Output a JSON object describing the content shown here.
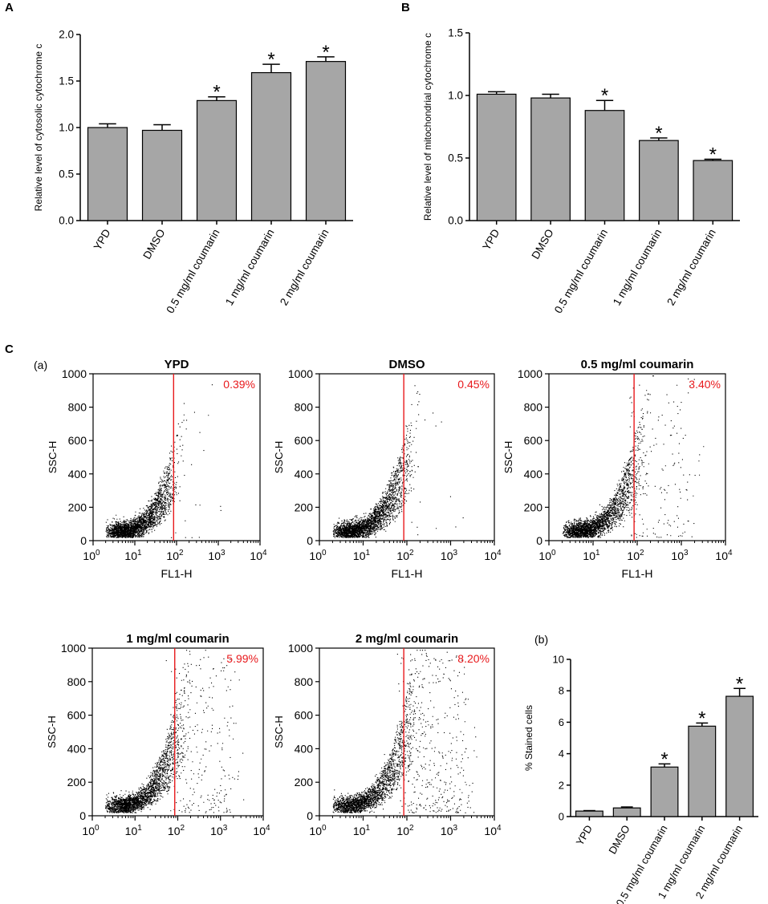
{
  "panel_labels": {
    "A": "A",
    "B": "B",
    "C": "C"
  },
  "sub_labels": {
    "a": "(a)",
    "b": "(b)"
  },
  "colors": {
    "bar": "#a6a6a6",
    "gate": "#e8191c",
    "axis": "#000000",
    "dots": "#000000"
  },
  "chart_data": [
    {
      "id": "A",
      "type": "bar",
      "title": "",
      "ylabel": "Relative level of cytosolic cytochrome c",
      "ylim": [
        0,
        2.0
      ],
      "yticks": [
        "0.0",
        "0.5",
        "1.0",
        "1.5",
        "2.0"
      ],
      "categories": [
        "YPD",
        "DMSO",
        "0.5 mg/ml coumarin",
        "1 mg/ml coumarin",
        "2 mg/ml coumarin"
      ],
      "values": [
        1.0,
        0.97,
        1.29,
        1.59,
        1.71
      ],
      "errors": [
        0.04,
        0.06,
        0.04,
        0.09,
        0.05
      ],
      "significant": [
        false,
        false,
        true,
        true,
        true
      ],
      "sig_symbol": "*"
    },
    {
      "id": "B",
      "type": "bar",
      "title": "",
      "ylabel": "Relative level of mitochondrial cytochrome c",
      "ylim": [
        0,
        1.5
      ],
      "yticks": [
        "0.0",
        "0.5",
        "1.0",
        "1.5"
      ],
      "categories": [
        "YPD",
        "DMSO",
        "0.5 mg/ml coumarin",
        "1 mg/ml coumarin",
        "2 mg/ml coumarin"
      ],
      "values": [
        1.01,
        0.98,
        0.88,
        0.64,
        0.48
      ],
      "errors": [
        0.02,
        0.03,
        0.08,
        0.02,
        0.01
      ],
      "significant": [
        false,
        false,
        true,
        true,
        true
      ],
      "sig_symbol": "*"
    },
    {
      "id": "C-YPD",
      "type": "scatter",
      "title": "YPD",
      "xlabel": "FL1-H",
      "ylabel": "SSC-H",
      "xscale": "log",
      "xlim": [
        1,
        10000
      ],
      "ylim": [
        0,
        1000
      ],
      "xticks": [
        "10",
        "10",
        "10",
        "10",
        "10"
      ],
      "xtick_exponents": [
        "0",
        "1",
        "2",
        "3",
        "4"
      ],
      "yticks": [
        "0",
        "200",
        "400",
        "600",
        "800",
        "1000"
      ],
      "gate_x": 85,
      "percent_label": "0.39%",
      "population": {
        "main_x_log": 1.0,
        "main_y": 110,
        "spread": 0.75,
        "outlier_fraction": 0.004
      }
    },
    {
      "id": "C-DMSO",
      "type": "scatter",
      "title": "DMSO",
      "xlabel": "FL1-H",
      "ylabel": "SSC-H",
      "xscale": "log",
      "xlim": [
        1,
        10000
      ],
      "ylim": [
        0,
        1000
      ],
      "xticks": [
        "10",
        "10",
        "10",
        "10",
        "10"
      ],
      "xtick_exponents": [
        "0",
        "1",
        "2",
        "3",
        "4"
      ],
      "yticks": [
        "0",
        "200",
        "400",
        "600",
        "800",
        "1000"
      ],
      "gate_x": 85,
      "percent_label": "0.45%",
      "population": {
        "main_x_log": 1.15,
        "main_y": 120,
        "spread": 0.85,
        "outlier_fraction": 0.005
      }
    },
    {
      "id": "C-0.5",
      "type": "scatter",
      "title": "0.5 mg/ml coumarin",
      "xlabel": "FL1-H",
      "ylabel": "SSC-H",
      "xscale": "log",
      "xlim": [
        1,
        10000
      ],
      "ylim": [
        0,
        1000
      ],
      "xticks": [
        "10",
        "10",
        "10",
        "10",
        "10"
      ],
      "xtick_exponents": [
        "0",
        "1",
        "2",
        "3",
        "4"
      ],
      "yticks": [
        "0",
        "200",
        "400",
        "600",
        "800",
        "1000"
      ],
      "gate_x": 85,
      "percent_label": "3.40%",
      "population": {
        "main_x_log": 1.0,
        "main_y": 130,
        "spread": 0.9,
        "outlier_fraction": 0.034
      }
    },
    {
      "id": "C-1",
      "type": "scatter",
      "title": "1 mg/ml coumarin",
      "xlabel": "",
      "ylabel": "SSC-H",
      "xscale": "log",
      "xlim": [
        1,
        10000
      ],
      "ylim": [
        0,
        1000
      ],
      "xticks": [
        "10",
        "10",
        "10",
        "10",
        "10"
      ],
      "xtick_exponents": [
        "0",
        "1",
        "2",
        "3",
        "4"
      ],
      "yticks": [
        "0",
        "200",
        "400",
        "600",
        "800",
        "1000"
      ],
      "gate_x": 85,
      "percent_label": "5.99%",
      "population": {
        "main_x_log": 1.05,
        "main_y": 140,
        "spread": 0.95,
        "outlier_fraction": 0.06
      }
    },
    {
      "id": "C-2",
      "type": "scatter",
      "title": "2 mg/ml coumarin",
      "xlabel": "",
      "ylabel": "SSC-H",
      "xscale": "log",
      "xlim": [
        1,
        10000
      ],
      "ylim": [
        0,
        1000
      ],
      "xticks": [
        "10",
        "10",
        "10",
        "10",
        "10"
      ],
      "xtick_exponents": [
        "0",
        "1",
        "2",
        "3",
        "4"
      ],
      "yticks": [
        "0",
        "200",
        "400",
        "600",
        "800",
        "1000"
      ],
      "gate_x": 85,
      "percent_label": "8.20%",
      "population": {
        "main_x_log": 1.1,
        "main_y": 150,
        "spread": 1.0,
        "outlier_fraction": 0.082
      }
    },
    {
      "id": "C-b",
      "type": "bar",
      "title": "",
      "ylabel": "% Stained cells",
      "ylim": [
        0,
        10
      ],
      "yticks": [
        "0",
        "2",
        "4",
        "6",
        "8",
        "10"
      ],
      "categories": [
        "YPD",
        "DMSO",
        "0.5 mg/ml coumarin",
        "1 mg/ml coumarin",
        "2 mg/ml coumarin"
      ],
      "values": [
        0.35,
        0.55,
        3.15,
        5.75,
        7.65
      ],
      "errors": [
        0.03,
        0.06,
        0.2,
        0.2,
        0.5
      ],
      "significant": [
        false,
        false,
        true,
        true,
        true
      ],
      "sig_symbol": "*"
    }
  ]
}
